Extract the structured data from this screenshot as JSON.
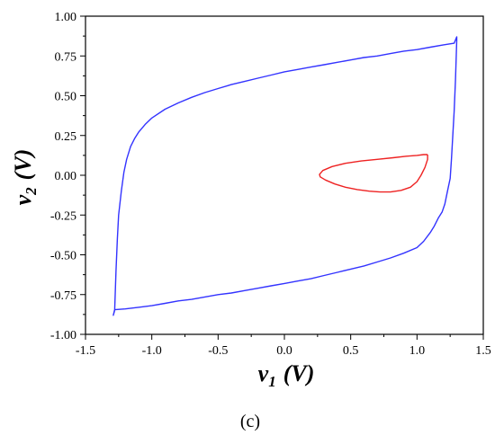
{
  "chart_data": {
    "type": "line",
    "title": "",
    "xlabel": {
      "symbol": "v",
      "subscript": "1",
      "unit": "(V)"
    },
    "ylabel": {
      "symbol": "v",
      "subscript": "2",
      "unit": "(V)"
    },
    "xlim": [
      -1.5,
      1.5
    ],
    "ylim": [
      -1.0,
      1.0
    ],
    "xticks": [
      "-1.5",
      "-1.0",
      "-0.5",
      "0.0",
      "0.5",
      "1.0",
      "1.5"
    ],
    "yticks": [
      "1.00",
      "0.75",
      "0.50",
      "0.25",
      "0.00",
      "-0.25",
      "-0.50",
      "-0.75",
      "-1.00"
    ],
    "grid": false,
    "legend": "none",
    "caption": "(c)",
    "series": [
      {
        "color": "#3333ff",
        "x": [
          -1.28,
          -1.27,
          -1.26,
          -1.25,
          -1.23,
          -1.21,
          -1.19,
          -1.16,
          -1.13,
          -1.1,
          -1.05,
          -1.0,
          -0.9,
          -0.8,
          -0.7,
          -0.6,
          -0.5,
          -0.4,
          -0.3,
          -0.2,
          -0.1,
          0.0,
          0.1,
          0.2,
          0.3,
          0.4,
          0.5,
          0.6,
          0.7,
          0.8,
          0.9,
          1.0,
          1.1,
          1.2,
          1.28,
          1.3,
          1.3,
          1.29,
          1.28,
          1.27,
          1.26,
          1.25,
          1.23,
          1.21,
          1.19,
          1.16,
          1.13,
          1.1,
          1.05,
          1.0,
          0.9,
          0.8,
          0.7,
          0.6,
          0.5,
          0.4,
          0.3,
          0.2,
          0.1,
          0.0,
          -0.1,
          -0.2,
          -0.3,
          -0.4,
          -0.5,
          -0.6,
          -0.7,
          -0.8,
          -0.9,
          -1.0,
          -1.1,
          -1.2,
          -1.28,
          -1.29,
          -1.28
        ],
        "y": [
          -0.85,
          -0.6,
          -0.4,
          -0.25,
          -0.1,
          0.02,
          0.1,
          0.18,
          0.23,
          0.27,
          0.32,
          0.36,
          0.415,
          0.455,
          0.49,
          0.52,
          0.545,
          0.57,
          0.59,
          0.61,
          0.63,
          0.65,
          0.665,
          0.68,
          0.695,
          0.71,
          0.725,
          0.74,
          0.75,
          0.765,
          0.78,
          0.79,
          0.805,
          0.82,
          0.83,
          0.87,
          0.85,
          0.6,
          0.4,
          0.25,
          0.1,
          -0.02,
          -0.1,
          -0.18,
          -0.23,
          -0.27,
          -0.32,
          -0.36,
          -0.415,
          -0.455,
          -0.49,
          -0.52,
          -0.545,
          -0.57,
          -0.59,
          -0.61,
          -0.63,
          -0.65,
          -0.665,
          -0.68,
          -0.695,
          -0.71,
          -0.725,
          -0.74,
          -0.75,
          -0.765,
          -0.78,
          -0.79,
          -0.805,
          -0.82,
          -0.83,
          -0.84,
          -0.845,
          -0.88,
          -0.85
        ]
      },
      {
        "color": "#ee2222",
        "x": [
          1.08,
          1.08,
          1.06,
          1.03,
          1.0,
          0.95,
          0.88,
          0.8,
          0.72,
          0.64,
          0.55,
          0.46,
          0.38,
          0.31,
          0.27,
          0.265,
          0.29,
          0.36,
          0.46,
          0.58,
          0.7,
          0.82,
          0.92,
          1.0,
          1.05,
          1.08
        ],
        "y": [
          0.13,
          0.1,
          0.05,
          0.0,
          -0.04,
          -0.075,
          -0.095,
          -0.105,
          -0.105,
          -0.1,
          -0.09,
          -0.075,
          -0.055,
          -0.03,
          -0.01,
          0.005,
          0.03,
          0.055,
          0.075,
          0.09,
          0.1,
          0.11,
          0.12,
          0.125,
          0.13,
          0.13
        ]
      }
    ]
  }
}
